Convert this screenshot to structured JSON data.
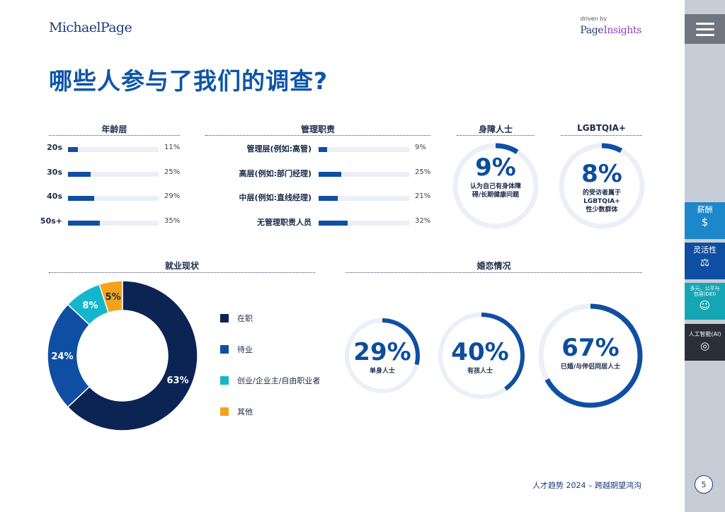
{
  "header": {
    "logo_left": "MichaelPage",
    "logo_right_small": "driven by",
    "logo_right_page": "Page",
    "logo_right_insights": "Insights"
  },
  "page_title": "哪些人参与了我们的调查?",
  "sections": {
    "age": "年龄层",
    "management": "管理职责",
    "disability": "身障人士",
    "lgbtqia": "LGBTQIA+",
    "employment": "就业现状",
    "marital": "婚恋情况"
  },
  "rings": {
    "disability": {
      "value": "9%",
      "desc": "认为自己有身体障\n碍/长期健康问题"
    },
    "lgbtqia": {
      "value": "8%",
      "desc": "的受访者属于\nLGBTQIA+\n性少数群体"
    },
    "single": {
      "value": "29%",
      "desc": "单身人士"
    },
    "children": {
      "value": "40%",
      "desc": "有孩人士"
    },
    "partnered": {
      "value": "67%",
      "desc": "已婚/与伴侣同居人士"
    }
  },
  "legend": [
    {
      "label": "在职",
      "color": "#0b2454"
    },
    {
      "label": "待业",
      "color": "#0f4fa3"
    },
    {
      "label": "创业/企业主/自由职业者",
      "color": "#14b6cc"
    },
    {
      "label": "其他",
      "color": "#f3a31b"
    }
  ],
  "chart_data": [
    {
      "type": "bar",
      "title": "年龄层",
      "categories": [
        "20s",
        "30s",
        "40s",
        "50s+"
      ],
      "values": [
        11,
        25,
        29,
        35
      ],
      "value_labels": [
        "11%",
        "25%",
        "29%",
        "35%"
      ],
      "ylim": [
        0,
        100
      ],
      "orientation": "horizontal"
    },
    {
      "type": "bar",
      "title": "管理职责",
      "categories": [
        "管理层(例如:高管)",
        "高层(例如:部门经理)",
        "中层(例如:直线经理)",
        "无管理职责人员"
      ],
      "values": [
        9,
        25,
        21,
        32
      ],
      "value_labels": [
        "9%",
        "25%",
        "21%",
        "32%"
      ],
      "ylim": [
        0,
        100
      ],
      "orientation": "horizontal"
    },
    {
      "type": "pie",
      "title": "就业现状",
      "categories": [
        "在职",
        "待业",
        "创业/企业主/自由职业者",
        "其他"
      ],
      "values": [
        63,
        24,
        8,
        5
      ],
      "value_labels": [
        "63%",
        "24%",
        "8%",
        "5%"
      ],
      "colors": [
        "#0b2454",
        "#0f4fa3",
        "#14b6cc",
        "#f3a31b"
      ],
      "legend": "right"
    },
    {
      "type": "pie",
      "title": "身障人士",
      "values": [
        9
      ],
      "value_labels": [
        "9%"
      ]
    },
    {
      "type": "pie",
      "title": "LGBTQIA+",
      "values": [
        8
      ],
      "value_labels": [
        "8%"
      ]
    },
    {
      "type": "pie",
      "title": "婚恋情况",
      "categories": [
        "单身人士",
        "有孩人士",
        "已婚/与伴侣同居人士"
      ],
      "values": [
        29,
        40,
        67
      ],
      "value_labels": [
        "29%",
        "40%",
        "67%"
      ]
    }
  ],
  "sidebar": {
    "tabs": [
      {
        "label": "薪酬",
        "color": "#1c87c9",
        "icon": "$"
      },
      {
        "label": "灵活性",
        "color": "#0f4fa3",
        "icon": "⚖"
      },
      {
        "label": "多元、公平与\n包容(DEI)",
        "color": "#14a7b3",
        "icon": "☺"
      },
      {
        "label": "人工智能(AI)",
        "color": "#2a2f3a",
        "icon": "◎"
      }
    ]
  },
  "footer": {
    "text": "人才趋势 2024 – 跨越期望鸿沟",
    "page": "5"
  },
  "colors": {
    "primary": "#0d55a8",
    "navy": "#0b2454",
    "track": "#eceef8"
  }
}
